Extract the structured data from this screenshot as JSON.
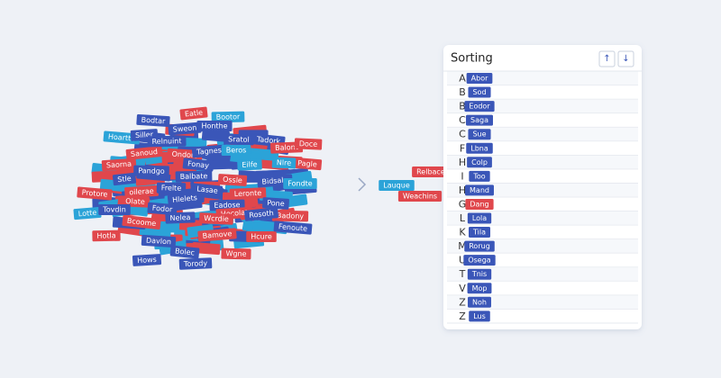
{
  "pile": [
    {
      "label": "Eatle",
      "color": "#e0474c"
    },
    {
      "label": "Bootor",
      "color": "#2ba3d8"
    },
    {
      "label": "Bodtar",
      "color": "#3a56b8"
    },
    {
      "label": "Sweon",
      "color": "#3a56b8"
    },
    {
      "label": "Honthe",
      "color": "#3a56b8"
    },
    {
      "label": "Hoartte",
      "color": "#2ba3d8"
    },
    {
      "label": "Siller",
      "color": "#3a56b8"
    },
    {
      "label": "Sratol",
      "color": "#3a56b8"
    },
    {
      "label": "Tadork",
      "color": "#3a56b8"
    },
    {
      "label": "Balont",
      "color": "#e0474c"
    },
    {
      "label": "Doce",
      "color": "#e0474c"
    },
    {
      "label": "Sanoud",
      "color": "#e0474c"
    },
    {
      "label": "Relnuint",
      "color": "#3a56b8"
    },
    {
      "label": "Ondors",
      "color": "#e0474c"
    },
    {
      "label": "Tagnes",
      "color": "#3a56b8"
    },
    {
      "label": "Beros",
      "color": "#2ba3d8"
    },
    {
      "label": "Pagle",
      "color": "#e0474c"
    },
    {
      "label": "Saorna",
      "color": "#e0474c"
    },
    {
      "label": "Pandgo",
      "color": "#3a56b8"
    },
    {
      "label": "Fonay",
      "color": "#3a56b8"
    },
    {
      "label": "Eilfe",
      "color": "#2ba3d8"
    },
    {
      "label": "Nlre",
      "color": "#2ba3d8"
    },
    {
      "label": "Stle",
      "color": "#3a56b8"
    },
    {
      "label": "Balbate",
      "color": "#3a56b8"
    },
    {
      "label": "Ossle",
      "color": "#e0474c"
    },
    {
      "label": "Bidsale",
      "color": "#3a56b8"
    },
    {
      "label": "Fondte",
      "color": "#2ba3d8"
    },
    {
      "label": "Protore",
      "color": "#e0474c"
    },
    {
      "label": "oilerae",
      "color": "#e0474c"
    },
    {
      "label": "Frelte",
      "color": "#3a56b8"
    },
    {
      "label": "Lasae",
      "color": "#3a56b8"
    },
    {
      "label": "Leronte",
      "color": "#e0474c"
    },
    {
      "label": "Olate",
      "color": "#e0474c"
    },
    {
      "label": "Hlelets",
      "color": "#3a56b8"
    },
    {
      "label": "Eadose",
      "color": "#3a56b8"
    },
    {
      "label": "Pone",
      "color": "#3a56b8"
    },
    {
      "label": "Lotte",
      "color": "#2ba3d8"
    },
    {
      "label": "Tovdin",
      "color": "#3a56b8"
    },
    {
      "label": "Fodor",
      "color": "#3a56b8"
    },
    {
      "label": "Hocolat",
      "color": "#e0474c"
    },
    {
      "label": "Badony",
      "color": "#e0474c"
    },
    {
      "label": "Bcoome",
      "color": "#e0474c"
    },
    {
      "label": "Nelea",
      "color": "#3a56b8"
    },
    {
      "label": "Wcrdie",
      "color": "#e0474c"
    },
    {
      "label": "Rosoth",
      "color": "#3a56b8"
    },
    {
      "label": "Hotla",
      "color": "#e0474c"
    },
    {
      "label": "Davlon",
      "color": "#3a56b8"
    },
    {
      "label": "Bamove",
      "color": "#e0474c"
    },
    {
      "label": "Hcure",
      "color": "#e0474c"
    },
    {
      "label": "Fenoute",
      "color": "#3a56b8"
    },
    {
      "label": "Hows",
      "color": "#3a56b8"
    },
    {
      "label": "Wgne",
      "color": "#e0474c"
    },
    {
      "label": "Bolec",
      "color": "#3a56b8"
    },
    {
      "label": "Torody",
      "color": "#3a56b8"
    }
  ],
  "floating": [
    {
      "label": "Relbaces",
      "color": "#e0474c"
    },
    {
      "label": "Lauque",
      "color": "#2ba3d8"
    },
    {
      "label": "Weachins",
      "color": "#e0474c"
    }
  ],
  "panel": {
    "title": "Sorting",
    "buttons": [
      "↑",
      "↓"
    ],
    "rows": [
      {
        "letter": "A",
        "label": "Abor",
        "color": "#3a56b8"
      },
      {
        "letter": "B",
        "label": "Sod",
        "color": "#3a56b8"
      },
      {
        "letter": "B",
        "label": "Eodor",
        "color": "#3a56b8"
      },
      {
        "letter": "C",
        "label": "Saga",
        "color": "#3a56b8"
      },
      {
        "letter": "C",
        "label": "Sue",
        "color": "#3a56b8"
      },
      {
        "letter": "F",
        "label": "Lbna",
        "color": "#3a56b8"
      },
      {
        "letter": "H",
        "label": "Colp",
        "color": "#3a56b8"
      },
      {
        "letter": "I",
        "label": "Too",
        "color": "#3a56b8"
      },
      {
        "letter": "H",
        "label": "Mand",
        "color": "#3a56b8"
      },
      {
        "letter": "G",
        "label": "Dang",
        "color": "#e0474c"
      },
      {
        "letter": "L",
        "label": "Lola",
        "color": "#3a56b8"
      },
      {
        "letter": "K",
        "label": "Tila",
        "color": "#3a56b8"
      },
      {
        "letter": "M",
        "label": "Rorug",
        "color": "#3a56b8"
      },
      {
        "letter": "U",
        "label": "Osega",
        "color": "#3a56b8"
      },
      {
        "letter": "T",
        "label": "Tnis",
        "color": "#3a56b8"
      },
      {
        "letter": "V",
        "label": "Mop",
        "color": "#3a56b8"
      },
      {
        "letter": "Z",
        "label": "Noh",
        "color": "#3a56b8"
      },
      {
        "letter": "Z",
        "label": "Lus",
        "color": "#3a56b8"
      }
    ]
  }
}
